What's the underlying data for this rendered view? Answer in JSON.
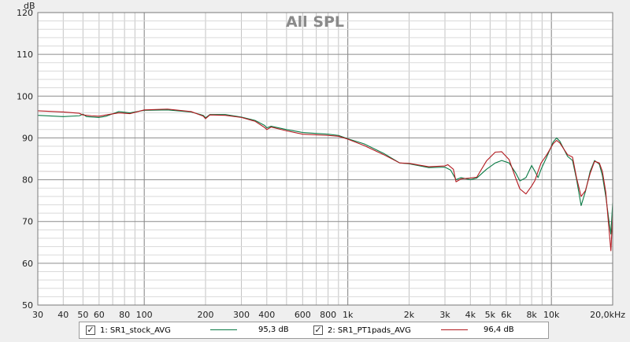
{
  "chart_data": {
    "type": "line",
    "title": "All SPL",
    "ylabel": "dB",
    "xscale": "log",
    "xlim": [
      30,
      20000
    ],
    "ylim": [
      50,
      120
    ],
    "yticks": [
      50,
      60,
      70,
      80,
      90,
      100,
      110,
      120
    ],
    "xticks": [
      {
        "v": 30,
        "label": "30"
      },
      {
        "v": 40,
        "label": "40"
      },
      {
        "v": 50,
        "label": "50"
      },
      {
        "v": 60,
        "label": "60"
      },
      {
        "v": 80,
        "label": "80"
      },
      {
        "v": 100,
        "label": "100"
      },
      {
        "v": 200,
        "label": "200"
      },
      {
        "v": 300,
        "label": "300"
      },
      {
        "v": 400,
        "label": "400"
      },
      {
        "v": 600,
        "label": "600"
      },
      {
        "v": 800,
        "label": "800"
      },
      {
        "v": 1000,
        "label": "1k"
      },
      {
        "v": 2000,
        "label": "2k"
      },
      {
        "v": 3000,
        "label": "3k"
      },
      {
        "v": 4000,
        "label": "4k"
      },
      {
        "v": 5000,
        "label": "5k"
      },
      {
        "v": 6000,
        "label": "6k"
      },
      {
        "v": 8000,
        "label": "8k"
      },
      {
        "v": 10000,
        "label": "10k"
      },
      {
        "v": 20000,
        "label": "20,0kHz"
      }
    ],
    "grid": true,
    "legend_position": "bottom",
    "series": [
      {
        "name": "1: SR1_stock_AVG",
        "value_label": "95,3 dB",
        "color": "#0a7a45",
        "points": [
          [
            30,
            95.4
          ],
          [
            40,
            95.1
          ],
          [
            48,
            95.3
          ],
          [
            50,
            95.7
          ],
          [
            52,
            95.1
          ],
          [
            60,
            94.9
          ],
          [
            65,
            95.2
          ],
          [
            75,
            96.3
          ],
          [
            85,
            96.0
          ],
          [
            100,
            96.6
          ],
          [
            130,
            96.7
          ],
          [
            170,
            96.2
          ],
          [
            195,
            95.4
          ],
          [
            200,
            94.8
          ],
          [
            210,
            95.6
          ],
          [
            250,
            95.6
          ],
          [
            300,
            95.0
          ],
          [
            350,
            94.2
          ],
          [
            390,
            93.0
          ],
          [
            400,
            92.4
          ],
          [
            420,
            92.8
          ],
          [
            500,
            92.0
          ],
          [
            600,
            91.3
          ],
          [
            800,
            90.9
          ],
          [
            900,
            90.6
          ],
          [
            1000,
            89.8
          ],
          [
            1200,
            88.6
          ],
          [
            1500,
            86.3
          ],
          [
            1800,
            84.0
          ],
          [
            2000,
            83.8
          ],
          [
            2500,
            82.9
          ],
          [
            3000,
            83.0
          ],
          [
            3200,
            82.3
          ],
          [
            3400,
            80.0
          ],
          [
            3600,
            80.5
          ],
          [
            4000,
            80.0
          ],
          [
            4300,
            80.4
          ],
          [
            4800,
            82.5
          ],
          [
            5300,
            84.0
          ],
          [
            5700,
            84.6
          ],
          [
            6200,
            84.0
          ],
          [
            6700,
            81.5
          ],
          [
            7000,
            79.7
          ],
          [
            7500,
            80.5
          ],
          [
            8000,
            83.4
          ],
          [
            8300,
            82.0
          ],
          [
            8600,
            80.5
          ],
          [
            8900,
            82.5
          ],
          [
            9500,
            85.5
          ],
          [
            10200,
            89.0
          ],
          [
            10600,
            90.0
          ],
          [
            11000,
            89.2
          ],
          [
            12000,
            85.6
          ],
          [
            12700,
            84.6
          ],
          [
            13300,
            80.0
          ],
          [
            14000,
            73.8
          ],
          [
            14700,
            77.2
          ],
          [
            15500,
            82.0
          ],
          [
            16300,
            84.6
          ],
          [
            17200,
            83.7
          ],
          [
            17800,
            81.0
          ],
          [
            18500,
            76.0
          ],
          [
            19200,
            70.0
          ],
          [
            19600,
            67.0
          ],
          [
            20000,
            74.5
          ]
        ]
      },
      {
        "name": "2: SR1_PT1pads_AVG",
        "value_label": "96,4 dB",
        "color": "#b2191f",
        "points": [
          [
            30,
            96.5
          ],
          [
            40,
            96.2
          ],
          [
            48,
            95.9
          ],
          [
            50,
            95.5
          ],
          [
            55,
            95.3
          ],
          [
            60,
            95.2
          ],
          [
            65,
            95.5
          ],
          [
            75,
            96.0
          ],
          [
            85,
            95.8
          ],
          [
            100,
            96.7
          ],
          [
            130,
            96.9
          ],
          [
            170,
            96.3
          ],
          [
            195,
            95.2
          ],
          [
            200,
            94.6
          ],
          [
            210,
            95.5
          ],
          [
            250,
            95.4
          ],
          [
            300,
            94.9
          ],
          [
            350,
            94.0
          ],
          [
            390,
            92.5
          ],
          [
            400,
            92.0
          ],
          [
            420,
            92.6
          ],
          [
            500,
            91.7
          ],
          [
            600,
            90.9
          ],
          [
            800,
            90.6
          ],
          [
            900,
            90.4
          ],
          [
            1000,
            89.7
          ],
          [
            1200,
            88.2
          ],
          [
            1500,
            86.0
          ],
          [
            1800,
            84.0
          ],
          [
            2000,
            83.9
          ],
          [
            2500,
            83.1
          ],
          [
            3000,
            83.3
          ],
          [
            3100,
            83.6
          ],
          [
            3300,
            82.5
          ],
          [
            3400,
            79.5
          ],
          [
            3600,
            80.2
          ],
          [
            4000,
            80.4
          ],
          [
            4300,
            80.6
          ],
          [
            4800,
            84.5
          ],
          [
            5300,
            86.6
          ],
          [
            5700,
            86.7
          ],
          [
            6200,
            84.8
          ],
          [
            6700,
            80.2
          ],
          [
            7000,
            77.8
          ],
          [
            7500,
            76.6
          ],
          [
            8000,
            78.5
          ],
          [
            8300,
            79.8
          ],
          [
            8600,
            82.0
          ],
          [
            8900,
            84.0
          ],
          [
            9500,
            86.0
          ],
          [
            10200,
            88.6
          ],
          [
            10600,
            89.4
          ],
          [
            11000,
            88.8
          ],
          [
            12000,
            86.0
          ],
          [
            12700,
            85.4
          ],
          [
            13300,
            80.4
          ],
          [
            14000,
            76.0
          ],
          [
            14700,
            77.4
          ],
          [
            15500,
            81.5
          ],
          [
            16300,
            84.4
          ],
          [
            17200,
            84.0
          ],
          [
            17800,
            82.0
          ],
          [
            18500,
            77.0
          ],
          [
            19200,
            68.0
          ],
          [
            19600,
            63.0
          ],
          [
            20000,
            71.5
          ]
        ]
      }
    ]
  }
}
